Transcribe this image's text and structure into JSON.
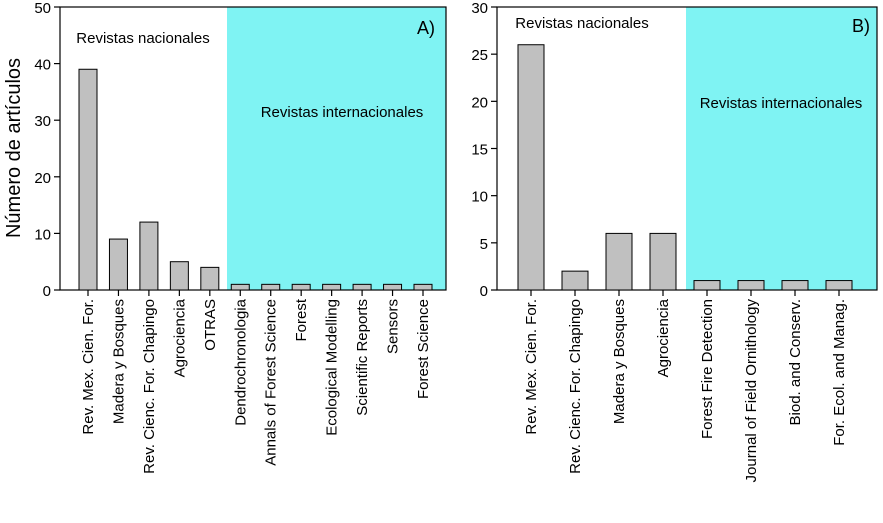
{
  "ylabel": "Número de artículos",
  "colors": {
    "bar_fill": "#c0c0c0",
    "bar_stroke": "#000000",
    "international_bg": "#7ff3f3",
    "axis": "#000000"
  },
  "chart_data": [
    {
      "type": "bar",
      "panel_label": "A)",
      "ylim": [
        0,
        50
      ],
      "yticks": [
        0,
        10,
        20,
        30,
        40,
        50
      ],
      "region_labels": {
        "national": "Revistas nacionales",
        "international": "Revistas internacionales"
      },
      "national_count": 5,
      "categories": [
        "Rev. Mex. Cien. For.",
        "Madera y Bosques",
        "Rev. Cienc. For. Chapingo",
        "Agrociencia",
        "OTRAS",
        "Dendrochronologia",
        "Annals of Forest Science",
        "Forest",
        "Ecological Modelling",
        "Scientific Reports",
        "Sensors",
        "Forest Science"
      ],
      "values": [
        39,
        9,
        12,
        5,
        4,
        1,
        1,
        1,
        1,
        1,
        1,
        1
      ]
    },
    {
      "type": "bar",
      "panel_label": "B)",
      "ylim": [
        0,
        30
      ],
      "yticks": [
        0,
        5,
        10,
        15,
        20,
        25,
        30
      ],
      "region_labels": {
        "national": "Revistas nacionales",
        "international": "Revistas internacionales"
      },
      "national_count": 4,
      "categories": [
        "Rev. Mex. Cien. For.",
        "Rev. Cienc. For. Chapingo",
        "Madera y Bosques",
        "Agrociencia",
        "Forest Fire Detection",
        "Journal of Field Ornithology",
        "Biod. and Conserv.",
        "For. Ecol. and Manag."
      ],
      "values": [
        26,
        2,
        6,
        6,
        1,
        1,
        1,
        1
      ]
    }
  ]
}
